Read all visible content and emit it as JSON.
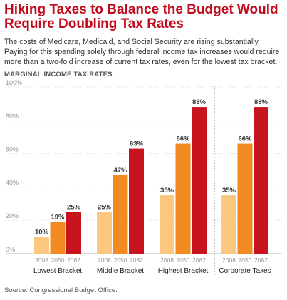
{
  "header": {
    "title": "Hiking Taxes to Balance the Budget Would Require Doubling Tax Rates",
    "description": "The costs of Medicare, Medicaid, and Social Security are rising substantially. Paying for this spending solely through federal income tax increases would require more than a two-fold increase of current tax rates, even for the lowest tax bracket.",
    "subtitle": "MARGINAL INCOME TAX RATES"
  },
  "source": "Source: Congressional Budget Office.",
  "colors": {
    "y2008": "#fcc77f",
    "y2050": "#f28a22",
    "y2082": "#c8141f",
    "axis_text": "#999999",
    "grid": "#dddddd",
    "divider": "#888888"
  },
  "chart_data": {
    "type": "bar",
    "title": "MARGINAL INCOME TAX RATES",
    "ylim": [
      0,
      100
    ],
    "yticks": [
      "0%",
      "20%",
      "40%",
      "60%",
      "80%",
      "100%"
    ],
    "years": [
      "2008",
      "2050",
      "2082"
    ],
    "groups": [
      {
        "name": "Lowest Bracket",
        "values": [
          10,
          19,
          25
        ],
        "labels": [
          "10%",
          "19%",
          "25%"
        ]
      },
      {
        "name": "Middle Bracket",
        "values": [
          25,
          47,
          63
        ],
        "labels": [
          "25%",
          "47%",
          "63%"
        ]
      },
      {
        "name": "Highest Bracket",
        "values": [
          35,
          66,
          88
        ],
        "labels": [
          "35%",
          "66%",
          "88%"
        ]
      },
      {
        "name": "Corporate Taxes",
        "values": [
          35,
          66,
          88
        ],
        "labels": [
          "35%",
          "66%",
          "88%"
        ]
      }
    ],
    "grid": true
  }
}
